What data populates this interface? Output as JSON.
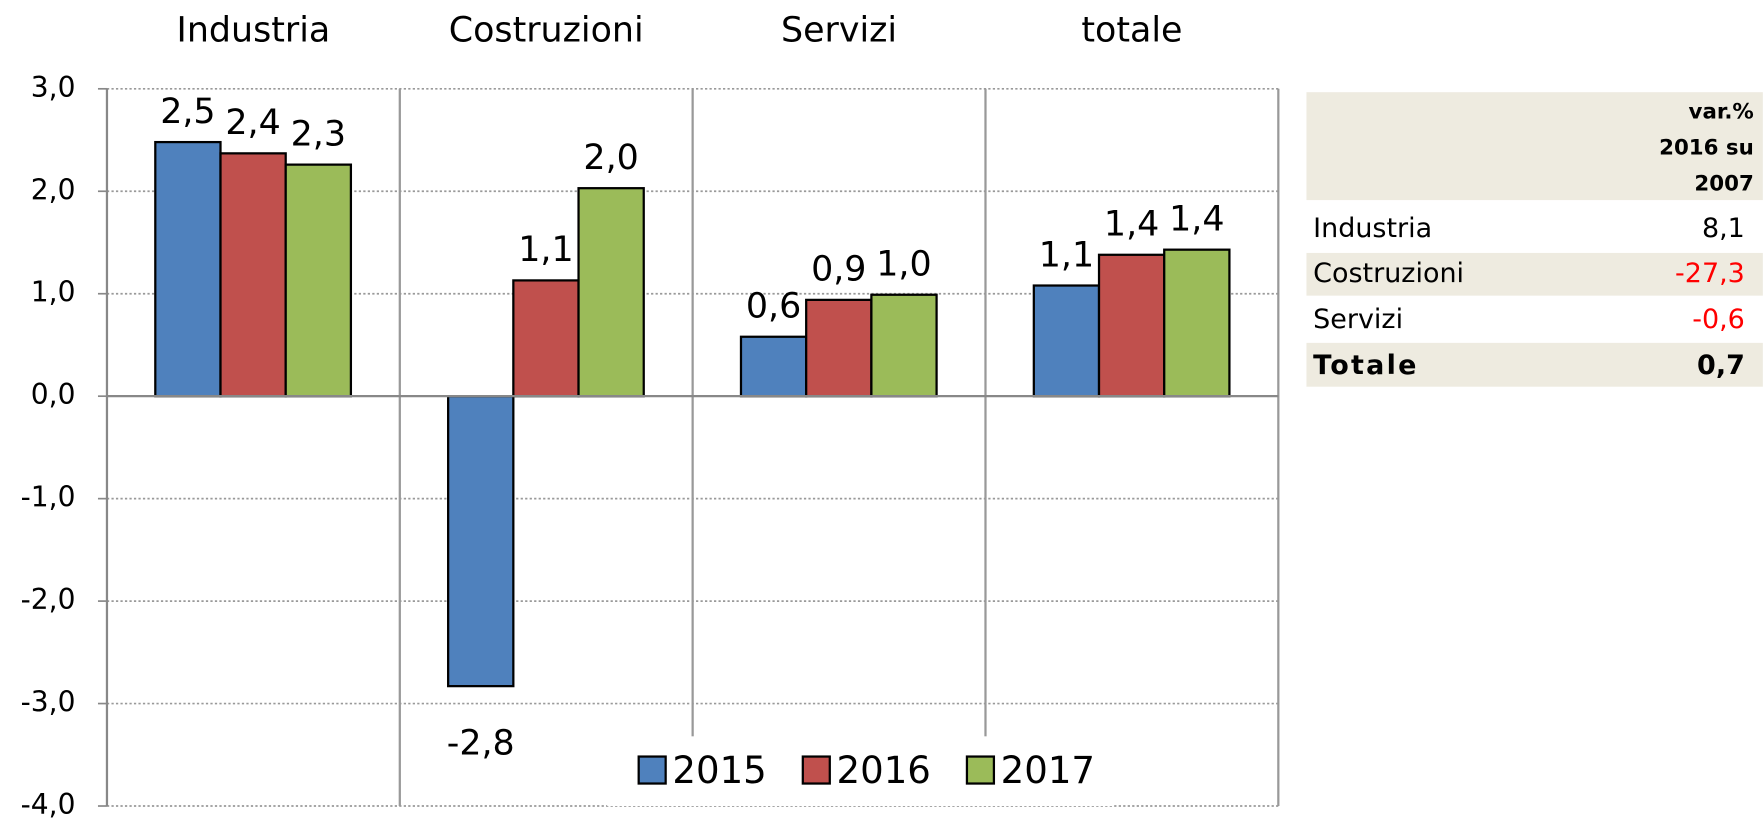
{
  "chart_data": {
    "type": "bar",
    "categories": [
      "Industria",
      "Costruzioni",
      "Servizi",
      "totale"
    ],
    "series": [
      {
        "name": "2015",
        "color": "#4f81bd",
        "values": [
          2.48,
          -2.83,
          0.58,
          1.08
        ],
        "value_labels": [
          "2,5",
          "-2,8",
          "0,6",
          "1,1"
        ]
      },
      {
        "name": "2016",
        "color": "#c0504d",
        "values": [
          2.37,
          1.13,
          0.94,
          1.38
        ],
        "value_labels": [
          "2,4",
          "1,1",
          "0,9",
          "1,4"
        ]
      },
      {
        "name": "2017",
        "color": "#9bbb59",
        "values": [
          2.26,
          2.03,
          0.99,
          1.43
        ],
        "value_labels": [
          "2,3",
          "2,0",
          "1,0",
          "1,4"
        ]
      }
    ],
    "ylim": [
      -4,
      3
    ],
    "yticks": [
      {
        "value": -4,
        "label": "-4,0"
      },
      {
        "value": -3,
        "label": "-3,0"
      },
      {
        "value": -2,
        "label": "-2,0"
      },
      {
        "value": -1,
        "label": "-1,0"
      },
      {
        "value": 0,
        "label": "0,0"
      },
      {
        "value": 1,
        "label": "1,0"
      },
      {
        "value": 2,
        "label": "2,0"
      },
      {
        "value": 3,
        "label": "3,0"
      }
    ],
    "grid": true,
    "legend": "bottom"
  },
  "table": {
    "header": [
      "var.%",
      "2016 su",
      "2007"
    ],
    "rows": [
      [
        "Industria",
        "8,1"
      ],
      [
        "Costruzioni",
        "-27,3"
      ],
      [
        "Servizi",
        "-0,6"
      ],
      [
        "Totale",
        "0,7"
      ]
    ]
  }
}
